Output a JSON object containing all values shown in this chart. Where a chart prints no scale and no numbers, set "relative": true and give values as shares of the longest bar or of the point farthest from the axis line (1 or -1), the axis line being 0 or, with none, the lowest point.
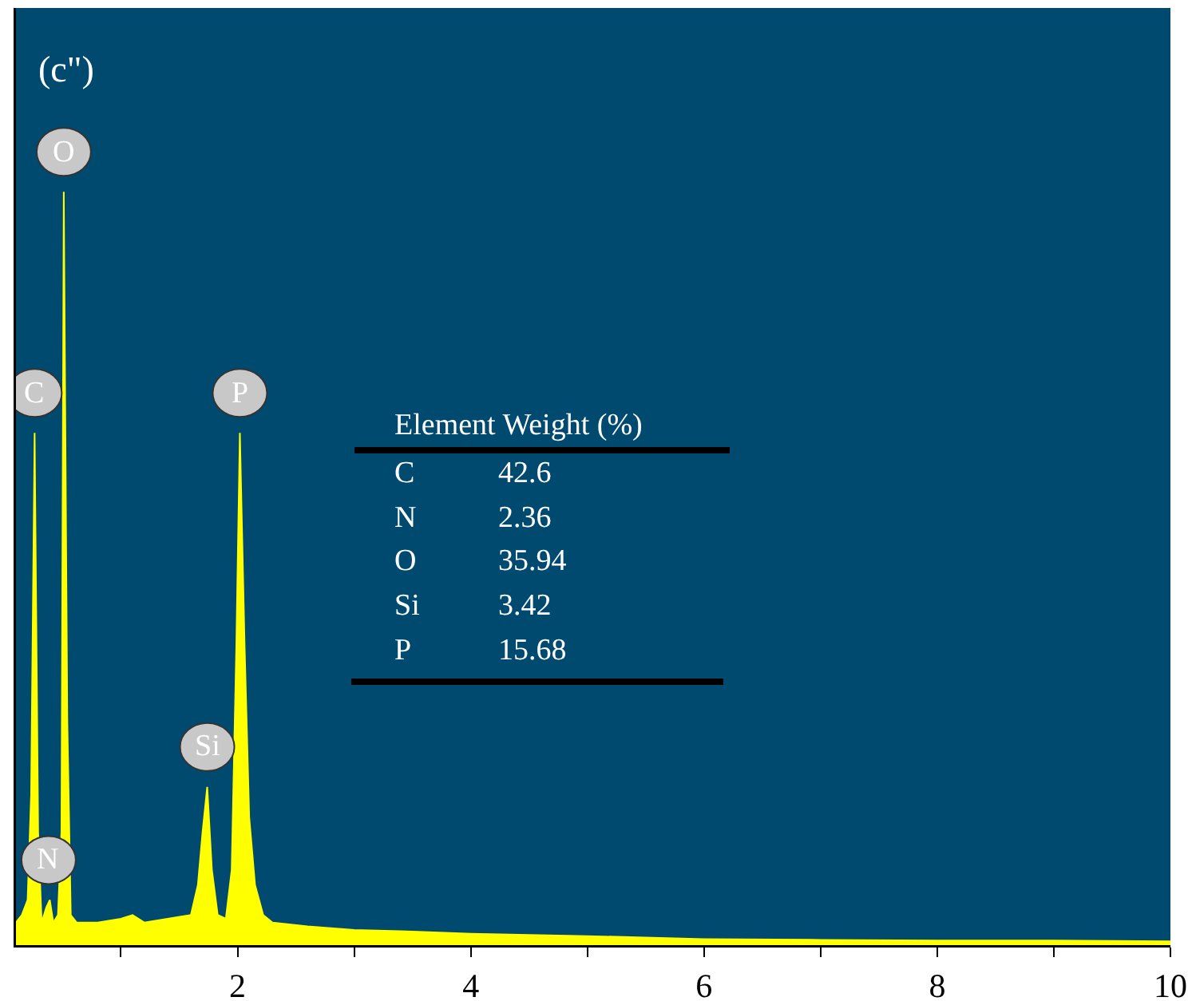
{
  "chart_data": {
    "type": "area",
    "relative": true,
    "x": [
      0.1,
      0.15,
      0.2,
      0.23,
      0.26,
      0.29,
      0.32,
      0.36,
      0.39,
      0.42,
      0.46,
      0.49,
      0.51,
      0.54,
      0.57,
      0.62,
      0.8,
      1.0,
      1.1,
      1.2,
      1.4,
      1.6,
      1.66,
      1.7,
      1.74,
      1.78,
      1.83,
      1.9,
      1.95,
      1.99,
      2.02,
      2.06,
      2.1,
      2.15,
      2.22,
      2.3,
      2.6,
      3.0,
      3.5,
      4.0,
      5.0,
      6.0,
      7.0,
      8.0,
      9.0,
      10.0
    ],
    "series": [
      {
        "color": "#ffff00",
        "values": [
          0.03,
          0.04,
          0.06,
          0.2,
          0.68,
          0.15,
          0.03,
          0.05,
          0.06,
          0.03,
          0.04,
          0.15,
          1.0,
          0.3,
          0.04,
          0.03,
          0.03,
          0.035,
          0.04,
          0.03,
          0.035,
          0.04,
          0.08,
          0.15,
          0.21,
          0.1,
          0.04,
          0.035,
          0.1,
          0.4,
          0.68,
          0.4,
          0.17,
          0.08,
          0.04,
          0.03,
          0.025,
          0.02,
          0.018,
          0.015,
          0.012,
          0.008,
          0.007,
          0.006,
          0.006,
          0.005
        ]
      }
    ],
    "xlim": [
      0.1,
      10
    ],
    "xticks": [
      {
        "value": 1,
        "label": null
      },
      2,
      {
        "value": 3,
        "label": null
      },
      4,
      {
        "value": 5,
        "label": null
      },
      6,
      {
        "value": 7,
        "label": null
      },
      8,
      {
        "value": 9,
        "label": null
      },
      10
    ],
    "tick_labels": "x",
    "grid": false,
    "marker": "none",
    "annotations": [
      "(c\")",
      {
        "text": "C",
        "x": 0.26,
        "y": 0.68
      },
      {
        "text": "N",
        "x": 0.38,
        "y": 0.06
      },
      {
        "text": "O",
        "x": 0.51,
        "y": 1.0
      },
      {
        "text": "Si",
        "x": 1.74,
        "y": 0.21
      },
      {
        "text": "P",
        "x": 2.02,
        "y": 0.68
      },
      "Element Weight (%)",
      "C",
      "42.6",
      "N",
      "2.36",
      "O",
      "35.94",
      "Si",
      "3.42",
      "P",
      "15.68"
    ]
  }
}
